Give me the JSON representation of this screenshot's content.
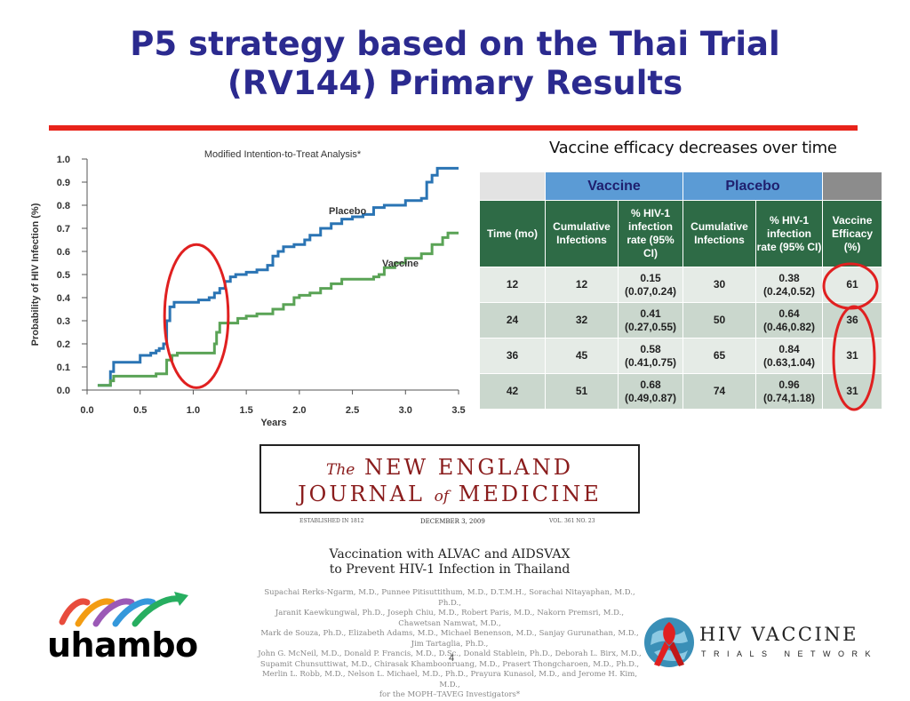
{
  "slide": {
    "title_line1": "P5 strategy based on the Thai Trial",
    "title_line2": "(RV144) Primary Results",
    "page_number": "4"
  },
  "chart_data": {
    "type": "line",
    "title": "Modified Intention-to-Treat Analysis*",
    "xlabel": "Years",
    "ylabel": "Probability of HIV Infection (%)",
    "xlim": [
      0,
      3.5
    ],
    "ylim": [
      0,
      1.0
    ],
    "x_ticks": [
      "0.0",
      "0.5",
      "1.0",
      "1.5",
      "2.0",
      "2.5",
      "3.0",
      "3.5"
    ],
    "y_ticks": [
      "0.0",
      "0.1",
      "0.2",
      "0.3",
      "0.4",
      "0.5",
      "0.6",
      "0.7",
      "0.8",
      "0.9",
      "1.0"
    ],
    "series": [
      {
        "name": "Placebo",
        "color": "#2a74b4",
        "points": [
          [
            0.1,
            0.02
          ],
          [
            0.2,
            0.02
          ],
          [
            0.22,
            0.08
          ],
          [
            0.25,
            0.12
          ],
          [
            0.45,
            0.12
          ],
          [
            0.5,
            0.15
          ],
          [
            0.6,
            0.16
          ],
          [
            0.65,
            0.17
          ],
          [
            0.68,
            0.18
          ],
          [
            0.72,
            0.2
          ],
          [
            0.75,
            0.3
          ],
          [
            0.78,
            0.36
          ],
          [
            0.82,
            0.38
          ],
          [
            1.0,
            0.38
          ],
          [
            1.05,
            0.39
          ],
          [
            1.15,
            0.4
          ],
          [
            1.2,
            0.42
          ],
          [
            1.25,
            0.44
          ],
          [
            1.3,
            0.47
          ],
          [
            1.35,
            0.49
          ],
          [
            1.4,
            0.5
          ],
          [
            1.5,
            0.51
          ],
          [
            1.6,
            0.52
          ],
          [
            1.7,
            0.54
          ],
          [
            1.75,
            0.58
          ],
          [
            1.8,
            0.6
          ],
          [
            1.85,
            0.62
          ],
          [
            1.95,
            0.63
          ],
          [
            2.0,
            0.63
          ],
          [
            2.05,
            0.65
          ],
          [
            2.1,
            0.67
          ],
          [
            2.2,
            0.7
          ],
          [
            2.3,
            0.72
          ],
          [
            2.4,
            0.74
          ],
          [
            2.5,
            0.75
          ],
          [
            2.6,
            0.76
          ],
          [
            2.7,
            0.79
          ],
          [
            2.8,
            0.8
          ],
          [
            2.9,
            0.8
          ],
          [
            3.0,
            0.82
          ],
          [
            3.15,
            0.83
          ],
          [
            3.2,
            0.9
          ],
          [
            3.25,
            0.93
          ],
          [
            3.3,
            0.96
          ],
          [
            3.5,
            0.96
          ]
        ]
      },
      {
        "name": "Vaccine",
        "color": "#5aa356",
        "points": [
          [
            0.1,
            0.02
          ],
          [
            0.2,
            0.02
          ],
          [
            0.22,
            0.04
          ],
          [
            0.25,
            0.06
          ],
          [
            0.5,
            0.06
          ],
          [
            0.65,
            0.07
          ],
          [
            0.75,
            0.13
          ],
          [
            0.8,
            0.15
          ],
          [
            0.85,
            0.16
          ],
          [
            1.0,
            0.16
          ],
          [
            1.15,
            0.16
          ],
          [
            1.2,
            0.2
          ],
          [
            1.22,
            0.25
          ],
          [
            1.25,
            0.29
          ],
          [
            1.4,
            0.29
          ],
          [
            1.42,
            0.31
          ],
          [
            1.5,
            0.32
          ],
          [
            1.6,
            0.33
          ],
          [
            1.7,
            0.33
          ],
          [
            1.75,
            0.35
          ],
          [
            1.85,
            0.37
          ],
          [
            1.95,
            0.4
          ],
          [
            2.0,
            0.41
          ],
          [
            2.1,
            0.42
          ],
          [
            2.2,
            0.44
          ],
          [
            2.3,
            0.46
          ],
          [
            2.4,
            0.48
          ],
          [
            2.6,
            0.48
          ],
          [
            2.7,
            0.49
          ],
          [
            2.75,
            0.5
          ],
          [
            2.8,
            0.53
          ],
          [
            2.9,
            0.55
          ],
          [
            3.0,
            0.57
          ],
          [
            3.15,
            0.59
          ],
          [
            3.25,
            0.63
          ],
          [
            3.35,
            0.66
          ],
          [
            3.4,
            0.68
          ],
          [
            3.5,
            0.68
          ]
        ]
      }
    ],
    "highlight": {
      "shape": "ellipse",
      "color": "#e02020",
      "x_center": 1.03,
      "y_center": 0.32,
      "x_radius": 0.3,
      "y_radius": 0.31
    }
  },
  "table": {
    "caption": "Vaccine efficacy decreases over time",
    "group_headers": {
      "vaccine": "Vaccine",
      "placebo": "Placebo"
    },
    "columns": [
      "Time (mo)",
      "Cumulative Infections",
      "% HIV-1 infection rate (95% CI)",
      "Cumulative Infections",
      "% HIV-1 infection rate (95% CI)",
      "Vaccine Efficacy (%)"
    ],
    "rows": [
      {
        "time": "12",
        "vac_cum": "12",
        "vac_rate": "0.15",
        "vac_ci": "(0.07,0.24)",
        "pla_cum": "30",
        "pla_rate": "0.38",
        "pla_ci": "(0.24,0.52)",
        "efficacy": "61"
      },
      {
        "time": "24",
        "vac_cum": "32",
        "vac_rate": "0.41",
        "vac_ci": "(0.27,0.55)",
        "pla_cum": "50",
        "pla_rate": "0.64",
        "pla_ci": "(0.46,0.82)",
        "efficacy": "36"
      },
      {
        "time": "36",
        "vac_cum": "45",
        "vac_rate": "0.58",
        "vac_ci": "(0.41,0.75)",
        "pla_cum": "65",
        "pla_rate": "0.84",
        "pla_ci": "(0.63,1.04)",
        "efficacy": "31"
      },
      {
        "time": "42",
        "vac_cum": "51",
        "vac_rate": "0.68",
        "vac_ci": "(0.49,0.87)",
        "pla_cum": "74",
        "pla_rate": "0.96",
        "pla_ci": "(0.74,1.18)",
        "efficacy": "31"
      }
    ]
  },
  "journal": {
    "the": "The",
    "line1": "NEW ENGLAND",
    "line2a": "JOURNAL",
    "of": "of",
    "line2b": "MEDICINE",
    "established": "ESTABLISHED IN 1812",
    "date": "DECEMBER 3, 2009",
    "volume": "VOL. 361    NO. 23"
  },
  "article": {
    "title_line1": "Vaccination with ALVAC and AIDSVAX",
    "title_line2": "to Prevent HIV-1 Infection in Thailand",
    "authors": [
      "Supachai Rerks-Ngarm, M.D., Punnee Pitisuttithum, M.D., D.T.M.H., Sorachai Nitayaphan, M.D., Ph.D.,",
      "Jaranit Kaewkungwal, Ph.D., Joseph Chiu, M.D., Robert Paris, M.D., Nakorn Premsri, M.D., Chawetsan Namwat, M.D.,",
      "Mark de Souza, Ph.D., Elizabeth Adams, M.D., Michael Benenson, M.D., Sanjay Gurunathan, M.D., Jim Tartaglia, Ph.D.,",
      "John G. McNeil, M.D., Donald P. Francis, M.D., D.Sc., Donald Stablein, Ph.D., Deborah L. Birx, M.D.,",
      "Supamit Chunsuttiwat, M.D., Chirasak Khamboonruang, M.D., Prasert Thongcharoen, M.D., Ph.D.,",
      "Merlin L. Robb, M.D., Nelson L. Michael, M.D., Ph.D., Prayura Kunasol, M.D., and Jerome H. Kim, M.D.,",
      "for the MOPH–TAVEG Investigators*"
    ]
  },
  "logos": {
    "uhambo": "uhambo",
    "hvtn_line1": "HIV VACCINE",
    "hvtn_line2": "TRIALS NETWORK"
  }
}
